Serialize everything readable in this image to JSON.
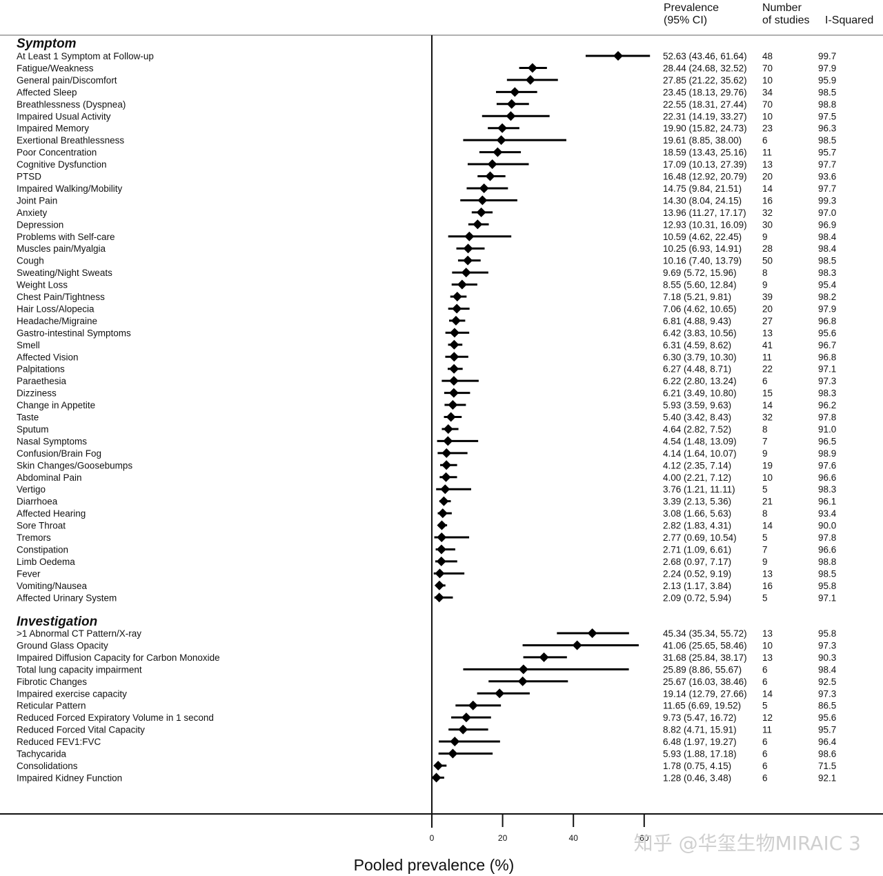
{
  "chart_data": {
    "type": "forest",
    "xlabel": "Pooled prevalence (%)",
    "xlim": [
      0,
      60
    ],
    "xticks": [
      "0",
      "20",
      "40",
      "60"
    ],
    "header": {
      "prevalence": [
        "Prevalence",
        "(95% CI)"
      ],
      "studies": [
        "Number",
        "of studies"
      ],
      "isq": "I-Squared"
    },
    "sections": [
      {
        "title": "Symptom",
        "rows": [
          {
            "label": "At Least 1 Symptom at Follow-up",
            "est": 52.63,
            "lo": 43.46,
            "hi": 61.64,
            "ci": "52.63 (43.46, 61.64)",
            "n": "48",
            "isq": "99.7"
          },
          {
            "label": "Fatigue/Weakness",
            "est": 28.44,
            "lo": 24.68,
            "hi": 32.52,
            "ci": "28.44 (24.68, 32.52)",
            "n": "70",
            "isq": "97.9"
          },
          {
            "label": "General pain/Discomfort",
            "est": 27.85,
            "lo": 21.22,
            "hi": 35.62,
            "ci": "27.85 (21.22, 35.62)",
            "n": "10",
            "isq": "95.9"
          },
          {
            "label": "Affected Sleep",
            "est": 23.45,
            "lo": 18.13,
            "hi": 29.76,
            "ci": "23.45 (18.13, 29.76)",
            "n": "34",
            "isq": "98.5"
          },
          {
            "label": "Breathlessness (Dyspnea)",
            "est": 22.55,
            "lo": 18.31,
            "hi": 27.44,
            "ci": "22.55 (18.31, 27.44)",
            "n": "70",
            "isq": "98.8"
          },
          {
            "label": "Impaired Usual Activity",
            "est": 22.31,
            "lo": 14.19,
            "hi": 33.27,
            "ci": "22.31 (14.19, 33.27)",
            "n": "10",
            "isq": "97.5"
          },
          {
            "label": "Impaired Memory",
            "est": 19.9,
            "lo": 15.82,
            "hi": 24.73,
            "ci": "19.90 (15.82, 24.73)",
            "n": "23",
            "isq": "96.3"
          },
          {
            "label": "Exertional Breathlessness",
            "est": 19.61,
            "lo": 8.85,
            "hi": 38.0,
            "ci": "19.61 (8.85, 38.00)",
            "n": "6",
            "isq": "98.5"
          },
          {
            "label": "Poor Concentration",
            "est": 18.59,
            "lo": 13.43,
            "hi": 25.16,
            "ci": "18.59 (13.43, 25.16)",
            "n": "11",
            "isq": "95.7"
          },
          {
            "label": "Cognitive Dysfunction",
            "est": 17.09,
            "lo": 10.13,
            "hi": 27.39,
            "ci": "17.09 (10.13, 27.39)",
            "n": "13",
            "isq": "97.7"
          },
          {
            "label": "PTSD",
            "est": 16.48,
            "lo": 12.92,
            "hi": 20.79,
            "ci": "16.48 (12.92, 20.79)",
            "n": "20",
            "isq": "93.6"
          },
          {
            "label": "Impaired Walking/Mobility",
            "est": 14.75,
            "lo": 9.84,
            "hi": 21.51,
            "ci": "14.75 (9.84, 21.51)",
            "n": "14",
            "isq": "97.7"
          },
          {
            "label": "Joint Pain",
            "est": 14.3,
            "lo": 8.04,
            "hi": 24.15,
            "ci": "14.30 (8.04, 24.15)",
            "n": "16",
            "isq": "99.3"
          },
          {
            "label": "Anxiety",
            "est": 13.96,
            "lo": 11.27,
            "hi": 17.17,
            "ci": "13.96 (11.27, 17.17)",
            "n": "32",
            "isq": "97.0"
          },
          {
            "label": "Depression",
            "est": 12.93,
            "lo": 10.31,
            "hi": 16.09,
            "ci": "12.93 (10.31, 16.09)",
            "n": "30",
            "isq": "96.9"
          },
          {
            "label": "Problems with Self-care",
            "est": 10.59,
            "lo": 4.62,
            "hi": 22.45,
            "ci": "10.59 (4.62, 22.45)",
            "n": "9",
            "isq": "98.4"
          },
          {
            "label": "Muscles pain/Myalgia",
            "est": 10.25,
            "lo": 6.93,
            "hi": 14.91,
            "ci": "10.25 (6.93, 14.91)",
            "n": "28",
            "isq": "98.4"
          },
          {
            "label": "Cough",
            "est": 10.16,
            "lo": 7.4,
            "hi": 13.79,
            "ci": "10.16 (7.40, 13.79)",
            "n": "50",
            "isq": "98.5"
          },
          {
            "label": "Sweating/Night Sweats",
            "est": 9.69,
            "lo": 5.72,
            "hi": 15.96,
            "ci": "9.69 (5.72, 15.96)",
            "n": "8",
            "isq": "98.3"
          },
          {
            "label": "Weight Loss",
            "est": 8.55,
            "lo": 5.6,
            "hi": 12.84,
            "ci": "8.55 (5.60, 12.84)",
            "n": "9",
            "isq": "95.4"
          },
          {
            "label": "Chest Pain/Tightness",
            "est": 7.18,
            "lo": 5.21,
            "hi": 9.81,
            "ci": "7.18 (5.21, 9.81)",
            "n": "39",
            "isq": "98.2"
          },
          {
            "label": "Hair Loss/Alopecia",
            "est": 7.06,
            "lo": 4.62,
            "hi": 10.65,
            "ci": "7.06 (4.62, 10.65)",
            "n": "20",
            "isq": "97.9"
          },
          {
            "label": "Headache/Migraine",
            "est": 6.81,
            "lo": 4.88,
            "hi": 9.43,
            "ci": "6.81 (4.88, 9.43)",
            "n": "27",
            "isq": "96.8"
          },
          {
            "label": "Gastro-intestinal Symptoms",
            "est": 6.42,
            "lo": 3.83,
            "hi": 10.56,
            "ci": "6.42 (3.83, 10.56)",
            "n": "13",
            "isq": "95.6"
          },
          {
            "label": "Smell",
            "est": 6.31,
            "lo": 4.59,
            "hi": 8.62,
            "ci": "6.31 (4.59, 8.62)",
            "n": "41",
            "isq": "96.7"
          },
          {
            "label": "Affected Vision",
            "est": 6.3,
            "lo": 3.79,
            "hi": 10.3,
            "ci": "6.30 (3.79, 10.30)",
            "n": "11",
            "isq": "96.8"
          },
          {
            "label": "Palpitations",
            "est": 6.27,
            "lo": 4.48,
            "hi": 8.71,
            "ci": "6.27 (4.48, 8.71)",
            "n": "22",
            "isq": "97.1"
          },
          {
            "label": "Paraethesia",
            "est": 6.22,
            "lo": 2.8,
            "hi": 13.24,
            "ci": "6.22 (2.80, 13.24)",
            "n": "6",
            "isq": "97.3"
          },
          {
            "label": "Dizziness",
            "est": 6.21,
            "lo": 3.49,
            "hi": 10.8,
            "ci": "6.21 (3.49, 10.80)",
            "n": "15",
            "isq": "98.3"
          },
          {
            "label": "Change in Appetite",
            "est": 5.93,
            "lo": 3.59,
            "hi": 9.63,
            "ci": "5.93 (3.59, 9.63)",
            "n": "14",
            "isq": "96.2"
          },
          {
            "label": "Taste",
            "est": 5.4,
            "lo": 3.42,
            "hi": 8.43,
            "ci": "5.40 (3.42, 8.43)",
            "n": "32",
            "isq": "97.8"
          },
          {
            "label": "Sputum",
            "est": 4.64,
            "lo": 2.82,
            "hi": 7.52,
            "ci": "4.64 (2.82, 7.52)",
            "n": "8",
            "isq": "91.0"
          },
          {
            "label": "Nasal Symptoms",
            "est": 4.54,
            "lo": 1.48,
            "hi": 13.09,
            "ci": "4.54 (1.48, 13.09)",
            "n": "7",
            "isq": "96.5"
          },
          {
            "label": "Confusion/Brain Fog",
            "est": 4.14,
            "lo": 1.64,
            "hi": 10.07,
            "ci": "4.14 (1.64, 10.07)",
            "n": "9",
            "isq": "98.9"
          },
          {
            "label": "Skin Changes/Goosebumps",
            "est": 4.12,
            "lo": 2.35,
            "hi": 7.14,
            "ci": "4.12 (2.35, 7.14)",
            "n": "19",
            "isq": "97.6"
          },
          {
            "label": "Abdominal Pain",
            "est": 4.0,
            "lo": 2.21,
            "hi": 7.12,
            "ci": "4.00 (2.21, 7.12)",
            "n": "10",
            "isq": "96.6"
          },
          {
            "label": "Vertigo",
            "est": 3.76,
            "lo": 1.21,
            "hi": 11.11,
            "ci": "3.76 (1.21, 11.11)",
            "n": "5",
            "isq": "98.3"
          },
          {
            "label": "Diarrhoea",
            "est": 3.39,
            "lo": 2.13,
            "hi": 5.36,
            "ci": "3.39 (2.13, 5.36)",
            "n": "21",
            "isq": "96.1"
          },
          {
            "label": "Affected Hearing",
            "est": 3.08,
            "lo": 1.66,
            "hi": 5.63,
            "ci": "3.08 (1.66, 5.63)",
            "n": "8",
            "isq": "93.4"
          },
          {
            "label": "Sore Throat",
            "est": 2.82,
            "lo": 1.83,
            "hi": 4.31,
            "ci": "2.82 (1.83, 4.31)",
            "n": "14",
            "isq": "90.0"
          },
          {
            "label": "Tremors",
            "est": 2.77,
            "lo": 0.69,
            "hi": 10.54,
            "ci": "2.77 (0.69, 10.54)",
            "n": "5",
            "isq": "97.8"
          },
          {
            "label": "Constipation",
            "est": 2.71,
            "lo": 1.09,
            "hi": 6.61,
            "ci": "2.71 (1.09, 6.61)",
            "n": "7",
            "isq": "96.6"
          },
          {
            "label": "Limb Oedema",
            "est": 2.68,
            "lo": 0.97,
            "hi": 7.17,
            "ci": "2.68 (0.97, 7.17)",
            "n": "9",
            "isq": "98.8"
          },
          {
            "label": "Fever",
            "est": 2.24,
            "lo": 0.52,
            "hi": 9.19,
            "ci": "2.24 (0.52, 9.19)",
            "n": "13",
            "isq": "98.5"
          },
          {
            "label": "Vomiting/Nausea",
            "est": 2.13,
            "lo": 1.17,
            "hi": 3.84,
            "ci": "2.13 (1.17, 3.84)",
            "n": "16",
            "isq": "95.8"
          },
          {
            "label": "Affected Urinary System",
            "est": 2.09,
            "lo": 0.72,
            "hi": 5.94,
            "ci": "2.09 (0.72, 5.94)",
            "n": "5",
            "isq": "97.1"
          }
        ]
      },
      {
        "title": "Investigation",
        "rows": [
          {
            "label": ">1 Abnormal CT Pattern/X-ray",
            "est": 45.34,
            "lo": 35.34,
            "hi": 55.72,
            "ci": "45.34 (35.34, 55.72)",
            "n": "13",
            "isq": "95.8"
          },
          {
            "label": "Ground Glass Opacity",
            "est": 41.06,
            "lo": 25.65,
            "hi": 58.46,
            "ci": "41.06 (25.65, 58.46)",
            "n": "10",
            "isq": "97.3"
          },
          {
            "label": "Impaired Diffusion Capacity for Carbon Monoxide",
            "est": 31.68,
            "lo": 25.84,
            "hi": 38.17,
            "ci": "31.68 (25.84, 38.17)",
            "n": "13",
            "isq": "90.3"
          },
          {
            "label": "Total lung capacity impairment",
            "est": 25.89,
            "lo": 8.86,
            "hi": 55.67,
            "ci": "25.89 (8.86, 55.67)",
            "n": "6",
            "isq": "98.4"
          },
          {
            "label": "Fibrotic Changes",
            "est": 25.67,
            "lo": 16.03,
            "hi": 38.46,
            "ci": "25.67 (16.03, 38.46)",
            "n": "6",
            "isq": "92.5"
          },
          {
            "label": "Impaired exercise capacity",
            "est": 19.14,
            "lo": 12.79,
            "hi": 27.66,
            "ci": "19.14 (12.79, 27.66)",
            "n": "14",
            "isq": "97.3"
          },
          {
            "label": "Reticular Pattern",
            "est": 11.65,
            "lo": 6.69,
            "hi": 19.52,
            "ci": "11.65 (6.69, 19.52)",
            "n": "5",
            "isq": "86.5"
          },
          {
            "label": "Reduced Forced Expiratory Volume in 1 second",
            "est": 9.73,
            "lo": 5.47,
            "hi": 16.72,
            "ci": "9.73 (5.47, 16.72)",
            "n": "12",
            "isq": "95.6"
          },
          {
            "label": "Reduced Forced Vital Capacity",
            "est": 8.82,
            "lo": 4.71,
            "hi": 15.91,
            "ci": "8.82 (4.71, 15.91)",
            "n": "11",
            "isq": "95.7"
          },
          {
            "label": "Reduced FEV1:FVC",
            "est": 6.48,
            "lo": 1.97,
            "hi": 19.27,
            "ci": "6.48 (1.97, 19.27)",
            "n": "6",
            "isq": "96.4"
          },
          {
            "label": "Tachycarida",
            "est": 5.93,
            "lo": 1.88,
            "hi": 17.18,
            "ci": "5.93 (1.88, 17.18)",
            "n": "6",
            "isq": "98.6"
          },
          {
            "label": "Consolidations",
            "est": 1.78,
            "lo": 0.75,
            "hi": 4.15,
            "ci": "1.78 (0.75, 4.15)",
            "n": "6",
            "isq": "71.5"
          },
          {
            "label": "Impaired Kidney Function",
            "est": 1.28,
            "lo": 0.46,
            "hi": 3.48,
            "ci": "1.28 (0.46, 3.48)",
            "n": "6",
            "isq": "92.1"
          }
        ]
      }
    ]
  },
  "watermark": "知乎 @华玺生物MIRAIC 3"
}
